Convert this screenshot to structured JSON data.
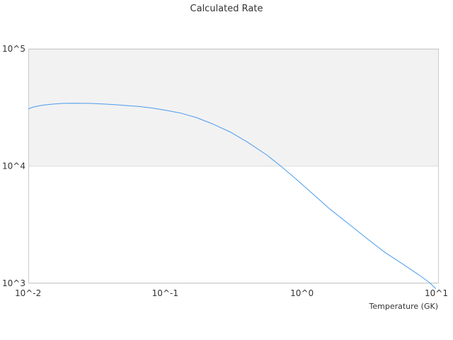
{
  "chart_data": {
    "type": "line",
    "title": "Calculated Rate",
    "xlabel": "Temperature (GK)",
    "ylabel": "",
    "xscale": "log",
    "yscale": "log",
    "xlim": [
      0.01,
      10
    ],
    "ylim": [
      1000,
      100000
    ],
    "grid": true,
    "legend": "none",
    "x_ticks": [
      {
        "value": 0.01,
        "label": "10^-2"
      },
      {
        "value": 0.1,
        "label": "10^-1"
      },
      {
        "value": 1,
        "label": "10^0"
      },
      {
        "value": 10,
        "label": "10^1"
      }
    ],
    "y_ticks": [
      {
        "value": 1000,
        "label": "10^3"
      },
      {
        "value": 10000,
        "label": "10^4"
      },
      {
        "value": 100000,
        "label": "10^5"
      }
    ],
    "series": [
      {
        "color": "#4a9bed",
        "points": [
          [
            0.01,
            30800
          ],
          [
            0.011,
            32000
          ],
          [
            0.0125,
            33000
          ],
          [
            0.015,
            33800
          ],
          [
            0.018,
            34300
          ],
          [
            0.022,
            34400
          ],
          [
            0.03,
            34200
          ],
          [
            0.04,
            33600
          ],
          [
            0.05,
            33000
          ],
          [
            0.065,
            32200
          ],
          [
            0.08,
            31300
          ],
          [
            0.1,
            30000
          ],
          [
            0.13,
            28300
          ],
          [
            0.17,
            25900
          ],
          [
            0.22,
            23000
          ],
          [
            0.3,
            19500
          ],
          [
            0.4,
            16000
          ],
          [
            0.55,
            12500
          ],
          [
            0.7,
            10000
          ],
          [
            0.9,
            7800
          ],
          [
            1.2,
            5800
          ],
          [
            1.6,
            4300
          ],
          [
            2.2,
            3200
          ],
          [
            3.0,
            2400
          ],
          [
            4.0,
            1850
          ],
          [
            5.5,
            1450
          ],
          [
            7.0,
            1200
          ],
          [
            8.5,
            1020
          ],
          [
            9.5,
            900
          ]
        ]
      }
    ]
  },
  "colors": {
    "band": "#f2f2f2",
    "gridline": "#dddddd",
    "frame": "#cccccc",
    "line": "#4a9bed"
  }
}
